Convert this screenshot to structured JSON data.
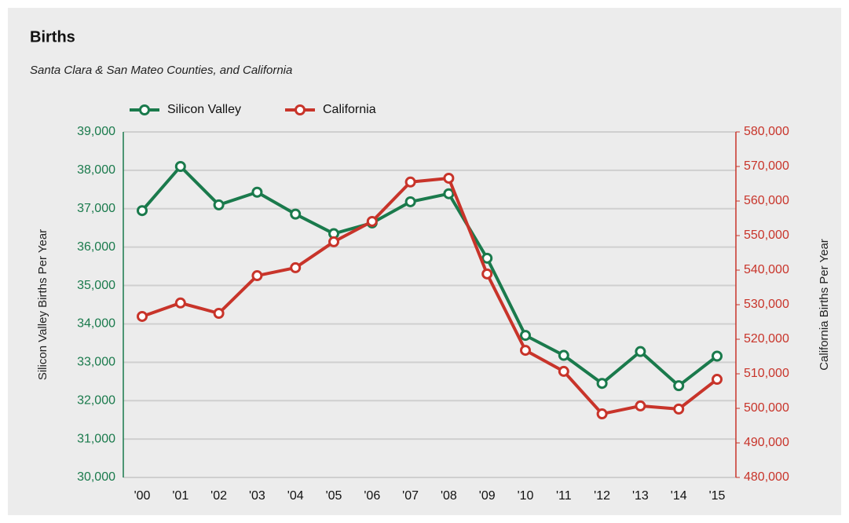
{
  "chart_data": {
    "type": "line",
    "title": "Births",
    "subtitle": "Santa Clara & San Mateo Counties, and California",
    "ylabel": "Silicon Valley Births Per Year",
    "y2label": "California Births Per Year",
    "categories": [
      "'00",
      "'01",
      "'02",
      "'03",
      "'04",
      "'05",
      "'06",
      "'07",
      "'08",
      "'09",
      "'10",
      "'11",
      "'12",
      "'13",
      "'14",
      "'15"
    ],
    "series": [
      {
        "name": "Silicon Valley",
        "color": "#1a7a4c",
        "values": [
          36950,
          38100,
          37100,
          37430,
          36860,
          36350,
          36630,
          37180,
          37390,
          35710,
          33700,
          33180,
          32450,
          33280,
          32390,
          33160
        ]
      },
      {
        "name": "California",
        "color": "#c8342a",
        "axis": "y2",
        "values": [
          526600,
          530500,
          527500,
          538400,
          540700,
          548200,
          554100,
          565500,
          566600,
          538900,
          516800,
          510700,
          498400,
          500700,
          499800,
          508400
        ]
      }
    ],
    "ylim": [
      30000,
      39000
    ],
    "yticks": [
      {
        "value": 30000,
        "label": "30,000"
      },
      {
        "value": 31000,
        "label": "31,000"
      },
      {
        "value": 32000,
        "label": "32,000"
      },
      {
        "value": 33000,
        "label": "33,000"
      },
      {
        "value": 34000,
        "label": "34,000"
      },
      {
        "value": 35000,
        "label": "35,000"
      },
      {
        "value": 36000,
        "label": "36,000"
      },
      {
        "value": 37000,
        "label": "37,000"
      },
      {
        "value": 38000,
        "label": "38,000"
      },
      {
        "value": 39000,
        "label": "39,000"
      }
    ],
    "y2lim": [
      480000,
      580000
    ],
    "y2ticks": [
      {
        "value": 480000,
        "label": "480,000"
      },
      {
        "value": 490000,
        "label": "490,000"
      },
      {
        "value": 500000,
        "label": "500,000"
      },
      {
        "value": 510000,
        "label": "510,000"
      },
      {
        "value": 520000,
        "label": "520,000"
      },
      {
        "value": 530000,
        "label": "530,000"
      },
      {
        "value": 540000,
        "label": "540,000"
      },
      {
        "value": 550000,
        "label": "550,000"
      },
      {
        "value": 560000,
        "label": "560,000"
      },
      {
        "value": 570000,
        "label": "570,000"
      },
      {
        "value": 580000,
        "label": "580,000"
      }
    ],
    "grid": true,
    "legend": "top"
  }
}
